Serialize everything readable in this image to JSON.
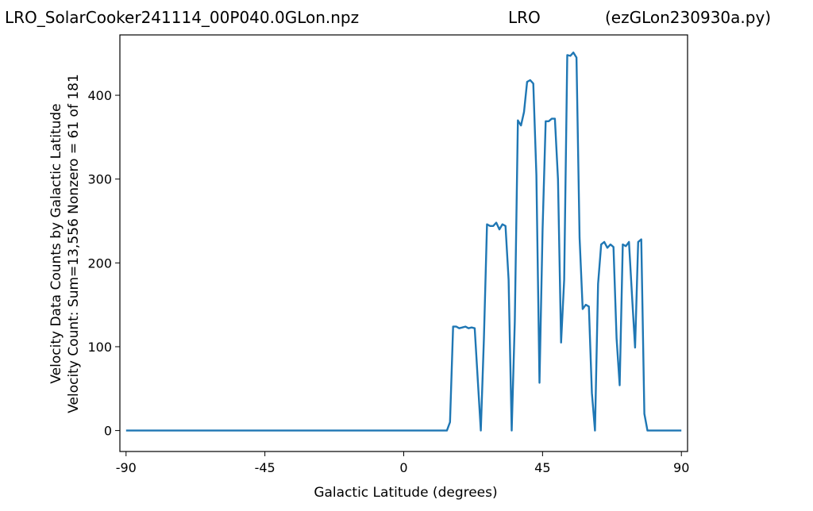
{
  "titles": {
    "left": "LRO_SolarCooker241114_00P040.0GLon.npz",
    "center": "LRO",
    "right": "(ezGLon230930a.py)"
  },
  "chart_data": {
    "type": "line",
    "xlabel": "Galactic Latitude (degrees)",
    "ylabel_lines": [
      "Velocity Data Counts by Galactic Latitude",
      "Velocity Count: Sum=13,556 Nonzero = 61 of 181"
    ],
    "xlim": [
      -92,
      92
    ],
    "ylim": [
      -25,
      472
    ],
    "xticks": [
      -90,
      -45,
      0,
      45,
      90
    ],
    "yticks": [
      0,
      100,
      200,
      300,
      400
    ],
    "grid": false,
    "color": "#1f77b4",
    "series": [
      {
        "points": [
          [
            -90,
            0
          ],
          [
            14,
            0
          ],
          [
            15,
            10
          ],
          [
            16,
            124
          ],
          [
            17,
            124
          ],
          [
            18,
            122
          ],
          [
            19,
            123
          ],
          [
            20,
            124
          ],
          [
            21,
            122
          ],
          [
            22,
            123
          ],
          [
            23,
            122
          ],
          [
            24,
            60
          ],
          [
            25,
            0
          ],
          [
            26,
            110
          ],
          [
            27,
            246
          ],
          [
            28,
            244
          ],
          [
            29,
            244
          ],
          [
            30,
            248
          ],
          [
            31,
            240
          ],
          [
            32,
            246
          ],
          [
            33,
            244
          ],
          [
            34,
            180
          ],
          [
            35,
            0
          ],
          [
            36,
            130
          ],
          [
            37,
            370
          ],
          [
            38,
            364
          ],
          [
            39,
            380
          ],
          [
            40,
            416
          ],
          [
            41,
            418
          ],
          [
            42,
            414
          ],
          [
            43,
            305
          ],
          [
            44,
            57
          ],
          [
            45,
            240
          ],
          [
            46,
            369
          ],
          [
            47,
            369
          ],
          [
            48,
            372
          ],
          [
            49,
            372
          ],
          [
            50,
            300
          ],
          [
            51,
            105
          ],
          [
            52,
            180
          ],
          [
            53,
            448
          ],
          [
            54,
            447
          ],
          [
            55,
            451
          ],
          [
            56,
            445
          ],
          [
            57,
            230
          ],
          [
            58,
            145
          ],
          [
            59,
            150
          ],
          [
            60,
            148
          ],
          [
            61,
            45
          ],
          [
            62,
            0
          ],
          [
            63,
            175
          ],
          [
            64,
            222
          ],
          [
            65,
            225
          ],
          [
            66,
            218
          ],
          [
            67,
            222
          ],
          [
            68,
            219
          ],
          [
            69,
            110
          ],
          [
            70,
            54
          ],
          [
            71,
            222
          ],
          [
            72,
            220
          ],
          [
            73,
            225
          ],
          [
            74,
            160
          ],
          [
            75,
            99
          ],
          [
            76,
            225
          ],
          [
            77,
            228
          ],
          [
            78,
            20
          ],
          [
            79,
            0
          ],
          [
            90,
            0
          ]
        ]
      }
    ]
  }
}
